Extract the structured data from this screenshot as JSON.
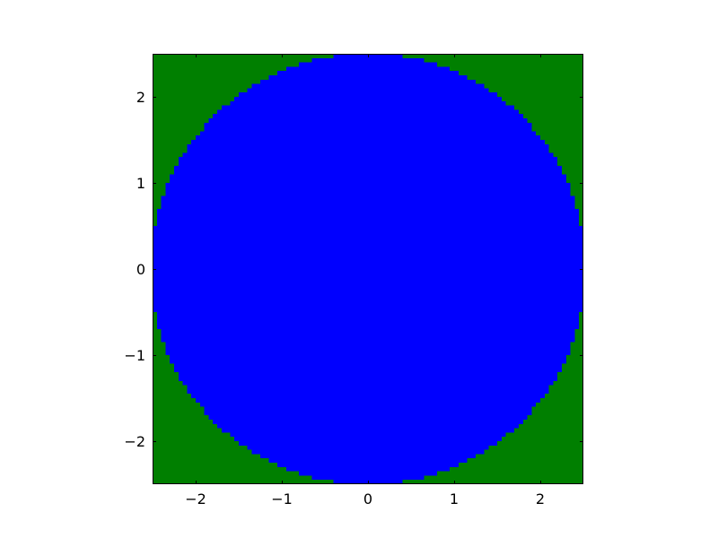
{
  "chart_data": {
    "type": "heatmap",
    "title": "",
    "xlabel": "",
    "ylabel": "",
    "xlim": [
      -2.5,
      2.5
    ],
    "ylim": [
      -2.5,
      2.5
    ],
    "x_ticks": [
      -2,
      -1,
      0,
      1,
      2
    ],
    "y_ticks": [
      -2,
      -1,
      0,
      1,
      2
    ],
    "x_tick_labels": [
      "−2",
      "−1",
      "0",
      "1",
      "2"
    ],
    "y_tick_labels": [
      "−2",
      "−1",
      "0",
      "1",
      "2"
    ],
    "grid": false,
    "legend": "none",
    "regions": [
      {
        "class": "inside",
        "color": "#0000ff",
        "boundary": "circle",
        "center": [
          0,
          0
        ],
        "radius": 2.5
      },
      {
        "class": "outside",
        "color": "#007f00"
      }
    ]
  }
}
